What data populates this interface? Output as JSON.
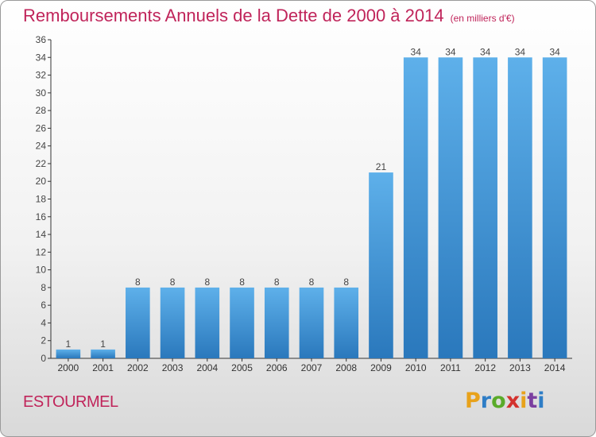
{
  "header": {
    "title": "Remboursements Annuels de la Dette de 2000 à 2014",
    "subtitle": "(en milliers d'€)"
  },
  "footer": {
    "commune": "ESTOURMEL",
    "logo": "Proxiti",
    "logo_colors": [
      "#e8a21b",
      "#2e7dc6",
      "#5aab2a",
      "#d3322e",
      "#e8a21b",
      "#7b3fa0",
      "#2e7dc6"
    ]
  },
  "colors": {
    "bar_light": "#5eb0ea",
    "bar_dark": "#2a78bc",
    "title": "#c0245a"
  },
  "chart_data": {
    "type": "bar",
    "title": "Remboursements Annuels de la Dette de 2000 à 2014",
    "subtitle": "(en milliers d'€)",
    "categories": [
      "2000",
      "2001",
      "2002",
      "2003",
      "2004",
      "2005",
      "2006",
      "2007",
      "2008",
      "2009",
      "2010",
      "2011",
      "2012",
      "2013",
      "2014"
    ],
    "values": [
      1,
      1,
      8,
      8,
      8,
      8,
      8,
      8,
      8,
      21,
      34,
      34,
      34,
      34,
      34
    ],
    "ylim": [
      0,
      36
    ],
    "yticks": [
      0,
      2,
      4,
      6,
      8,
      10,
      12,
      14,
      16,
      18,
      20,
      22,
      24,
      26,
      28,
      30,
      32,
      34,
      36
    ],
    "grid": false,
    "data_labels": true
  }
}
